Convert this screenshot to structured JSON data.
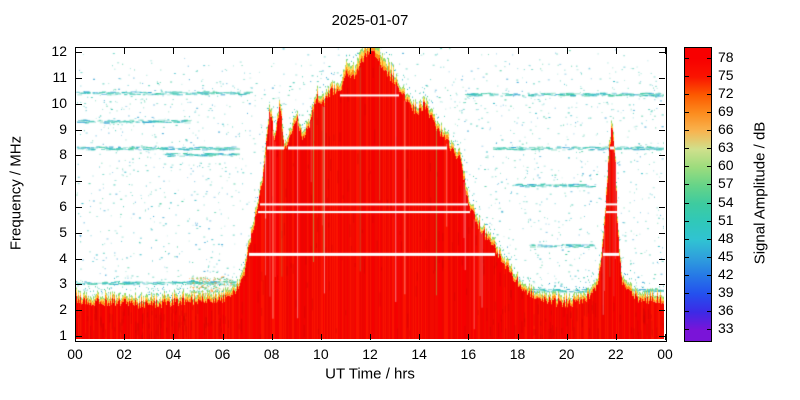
{
  "figure": {
    "title": "2025-01-07",
    "background": "#ffffff"
  },
  "x_axis": {
    "label": "UT Time / hrs",
    "ticks": [
      "00",
      "02",
      "04",
      "06",
      "08",
      "10",
      "12",
      "14",
      "16",
      "18",
      "20",
      "22",
      "00"
    ]
  },
  "y_axis": {
    "label": "Frequency / MHz",
    "ticks": [
      "12",
      "11",
      "10",
      "9",
      "8",
      "7",
      "6",
      "5",
      "4",
      "3",
      "2",
      "1"
    ]
  },
  "colorbar": {
    "label": "Signal Amplitude / dB",
    "ticks": [
      "78",
      "75",
      "72",
      "69",
      "66",
      "63",
      "60",
      "57",
      "54",
      "51",
      "48",
      "45",
      "42",
      "39",
      "36",
      "33"
    ],
    "tick_values": [
      78,
      75,
      72,
      69,
      66,
      63,
      60,
      57,
      54,
      51,
      48,
      45,
      42,
      39,
      36,
      33
    ],
    "colors": [
      "#f80000",
      "#fa1400",
      "#fc5a00",
      "#fc8c1e",
      "#f8b450",
      "#cfe08c",
      "#9cdc7d",
      "#66d488",
      "#3ecb9f",
      "#30c8b9",
      "#30c3d2",
      "#2fa0dc",
      "#2678e6",
      "#2450ee",
      "#3c2ae6",
      "#7a14d8"
    ]
  },
  "chart_data": {
    "type": "heatmap",
    "title": "2025-01-07",
    "xlabel": "UT Time / hrs",
    "ylabel": "Frequency / MHz",
    "colorbar_label": "Signal Amplitude / dB",
    "x_range": [
      0,
      24
    ],
    "y_range": [
      1,
      12
    ],
    "colorbar_range": [
      33,
      78
    ],
    "colorbar_tick_step": 3,
    "description": "HF spectrogram: strong signal (~75-78 dB, red) fills 1-2.5 MHz all day. Broad daytime enhancement ~06:30-18:00 UT rises to a peak near 12 MHz around 12:00 UT with yellow/green fringe at its upper edge. A narrow enhancement near 21:50 UT reaches ~9 MHz. Weak scattered teal/cyan speckles (~45-51 dB) over white background elsewhere. Narrow white horizontal gaps (no data) cut the red region near 4.15, 5.8, 6.1, 8.3 and 10.35 MHz.",
    "red_envelope_t_f": [
      [
        0,
        2.4
      ],
      [
        1,
        2.3
      ],
      [
        2,
        2.25
      ],
      [
        3,
        2.2
      ],
      [
        4,
        2.3
      ],
      [
        5,
        2.35
      ],
      [
        6,
        2.45
      ],
      [
        6.4,
        2.6
      ],
      [
        6.8,
        3.2
      ],
      [
        7.0,
        4.2
      ],
      [
        7.3,
        5.5
      ],
      [
        7.6,
        7.0
      ],
      [
        7.9,
        9.8
      ],
      [
        8.1,
        8.6
      ],
      [
        8.3,
        10.0
      ],
      [
        8.5,
        8.2
      ],
      [
        8.8,
        9.0
      ],
      [
        9.0,
        9.6
      ],
      [
        9.2,
        8.6
      ],
      [
        9.5,
        9.2
      ],
      [
        9.8,
        10.3
      ],
      [
        10.1,
        10.0
      ],
      [
        10.4,
        10.6
      ],
      [
        10.7,
        10.4
      ],
      [
        11.0,
        11.2
      ],
      [
        11.3,
        11.0
      ],
      [
        11.6,
        11.6
      ],
      [
        11.9,
        12.0
      ],
      [
        12.1,
        12.1
      ],
      [
        12.4,
        11.6
      ],
      [
        12.7,
        11.2
      ],
      [
        13.0,
        10.9
      ],
      [
        13.3,
        10.4
      ],
      [
        13.6,
        10.0
      ],
      [
        13.9,
        9.7
      ],
      [
        14.2,
        10.0
      ],
      [
        14.5,
        9.4
      ],
      [
        14.8,
        9.0
      ],
      [
        15.1,
        8.6
      ],
      [
        15.4,
        8.1
      ],
      [
        15.7,
        7.8
      ],
      [
        15.9,
        6.6
      ],
      [
        16.1,
        5.9
      ],
      [
        16.4,
        5.3
      ],
      [
        16.7,
        4.9
      ],
      [
        17.0,
        4.5
      ],
      [
        17.4,
        3.9
      ],
      [
        17.8,
        3.3
      ],
      [
        18.2,
        2.9
      ],
      [
        18.6,
        2.6
      ],
      [
        19.0,
        2.4
      ],
      [
        19.5,
        2.3
      ],
      [
        20.0,
        2.25
      ],
      [
        20.5,
        2.3
      ],
      [
        21.0,
        2.5
      ],
      [
        21.3,
        3.0
      ],
      [
        21.5,
        4.5
      ],
      [
        21.7,
        7.5
      ],
      [
        21.85,
        9.2
      ],
      [
        22.0,
        7.8
      ],
      [
        22.1,
        5.0
      ],
      [
        22.25,
        3.2
      ],
      [
        22.5,
        2.7
      ],
      [
        23.0,
        2.4
      ],
      [
        23.5,
        2.35
      ],
      [
        24,
        2.4
      ]
    ],
    "white_gap_lines_mhz": [
      {
        "f": 10.35,
        "w": 2
      },
      {
        "f": 8.3,
        "w": 3
      },
      {
        "f": 6.1,
        "w": 2
      },
      {
        "f": 5.8,
        "w": 2
      },
      {
        "f": 4.15,
        "w": 3
      }
    ],
    "interference_streaks": [
      {
        "f": 10.45,
        "t0": 0,
        "t1": 7
      },
      {
        "f": 9.35,
        "t0": 0,
        "t1": 4.5
      },
      {
        "f": 10.4,
        "t0": 15.8,
        "t1": 24
      },
      {
        "f": 8.3,
        "t0": 0,
        "t1": 6.5
      },
      {
        "f": 8.3,
        "t0": 17,
        "t1": 24
      },
      {
        "f": 8.05,
        "t0": 3.5,
        "t1": 6.5
      },
      {
        "f": 6.85,
        "t0": 17.8,
        "t1": 21
      },
      {
        "f": 3.05,
        "t0": 0,
        "t1": 6.5
      },
      {
        "f": 2.75,
        "t0": 18.3,
        "t1": 24
      },
      {
        "f": 4.5,
        "t0": 18.5,
        "t1": 21
      }
    ],
    "noise_blob": {
      "t0": 4.6,
      "t1": 6.4,
      "f0": 2.3,
      "f1": 3.3
    },
    "speckle_colors": [
      "#35c4ae",
      "#2fb9c6",
      "#5ad0c0",
      "#2f9fd3",
      "#3cc89b",
      "#7fd8ca"
    ],
    "red_colors": [
      "#f60000",
      "#ee0400",
      "#fb1400",
      "#f20a00"
    ],
    "cap_colors": {
      "orange": "#ff9416",
      "yellow": "#ffd84e",
      "green": "#90d968"
    },
    "blob_colors": [
      "#ff9c40",
      "#7cd060",
      "#3cc89b"
    ]
  }
}
